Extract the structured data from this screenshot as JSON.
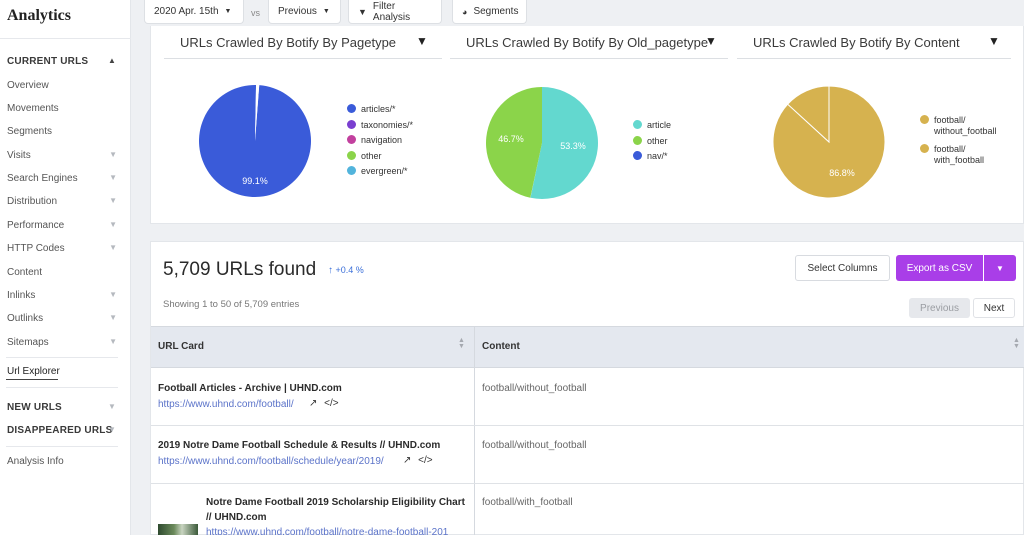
{
  "sidebar": {
    "title": "Analytics",
    "section_current": "CURRENT URLS",
    "items": [
      "Overview",
      "Movements",
      "Segments",
      "Visits",
      "Search Engines",
      "Distribution",
      "Performance",
      "HTTP Codes",
      "Content",
      "Inlinks",
      "Outlinks",
      "Sitemaps"
    ],
    "active_item": "Url Explorer",
    "section_new": "NEW URLS",
    "section_disappeared": "DISAPPEARED URLS",
    "analysis_info": "Analysis Info"
  },
  "topbar": {
    "date": "2020 Apr. 15th",
    "vs": "vs",
    "compare": "Previous",
    "filter": "Filter Analysis",
    "segments": "Segments"
  },
  "charts": [
    {
      "title": "URLs Crawled By Botify By Pagetype",
      "slices": [
        {
          "name": "articles/*",
          "pct": 99.1,
          "color": "#3a5bd9"
        },
        {
          "name": "taxonomies/*",
          "pct": 0.3,
          "color": "#7a3fd0"
        },
        {
          "name": "navigation",
          "pct": 0.2,
          "color": "#c2409e"
        },
        {
          "name": "other",
          "pct": 0.2,
          "color": "#8bd44a"
        },
        {
          "name": "evergreen/*",
          "pct": 0.2,
          "color": "#52b4dc"
        }
      ],
      "label": "99.1%",
      "legend": [
        "articles/*",
        "taxonomies/*",
        "navigation",
        "other",
        "evergreen/*"
      ]
    },
    {
      "title": "URLs Crawled By Botify By Old_pagetype",
      "slices": [
        {
          "name": "article",
          "pct": 53.3,
          "color": "#63d8cf"
        },
        {
          "name": "other",
          "pct": 46.7,
          "color": "#8bd44a"
        },
        {
          "name": "nav/*",
          "pct": 0.0,
          "color": "#3a5bd9"
        }
      ],
      "labels": [
        "53.3%",
        "46.7%"
      ],
      "legend": [
        "article",
        "other",
        "nav/*"
      ]
    },
    {
      "title": "URLs Crawled By Botify By Content",
      "slices": [
        {
          "name": "football/ without_football",
          "pct": 86.8,
          "color": "#d6b24f"
        },
        {
          "name": "football/ with_football",
          "pct": 13.2,
          "color": "#d6b24f"
        }
      ],
      "label": "86.8%",
      "legend": [
        [
          "football/",
          "without_football"
        ],
        [
          "football/",
          "with_football"
        ]
      ]
    }
  ],
  "results": {
    "count_text": "5,709 URLs found",
    "delta": "+0.4 %",
    "showing": "Showing 1 to 50 of 5,709 entries",
    "select_columns": "Select Columns",
    "export": "Export as CSV",
    "prev": "Previous",
    "next": "Next",
    "col_url": "URL Card",
    "col_content": "Content",
    "rows": [
      {
        "title": "Football Articles - Archive | UHND.com",
        "url": "https://www.uhnd.com/football/",
        "content": "football/without_football"
      },
      {
        "title": "2019 Notre Dame Football Schedule & Results // UHND.com",
        "url": "https://www.uhnd.com/football/schedule/year/2019/",
        "content": "football/without_football"
      },
      {
        "title_line1": "Notre Dame Football 2019 Scholarship Eligibility Chart",
        "title_line2": "// UHND.com",
        "url": "https://www.uhnd.com/football/notre-dame-football-201",
        "content": "football/with_football"
      }
    ]
  },
  "colors": {
    "accent": "#a93ee8",
    "link": "#5b73c9",
    "delta": "#3b6fd9"
  }
}
